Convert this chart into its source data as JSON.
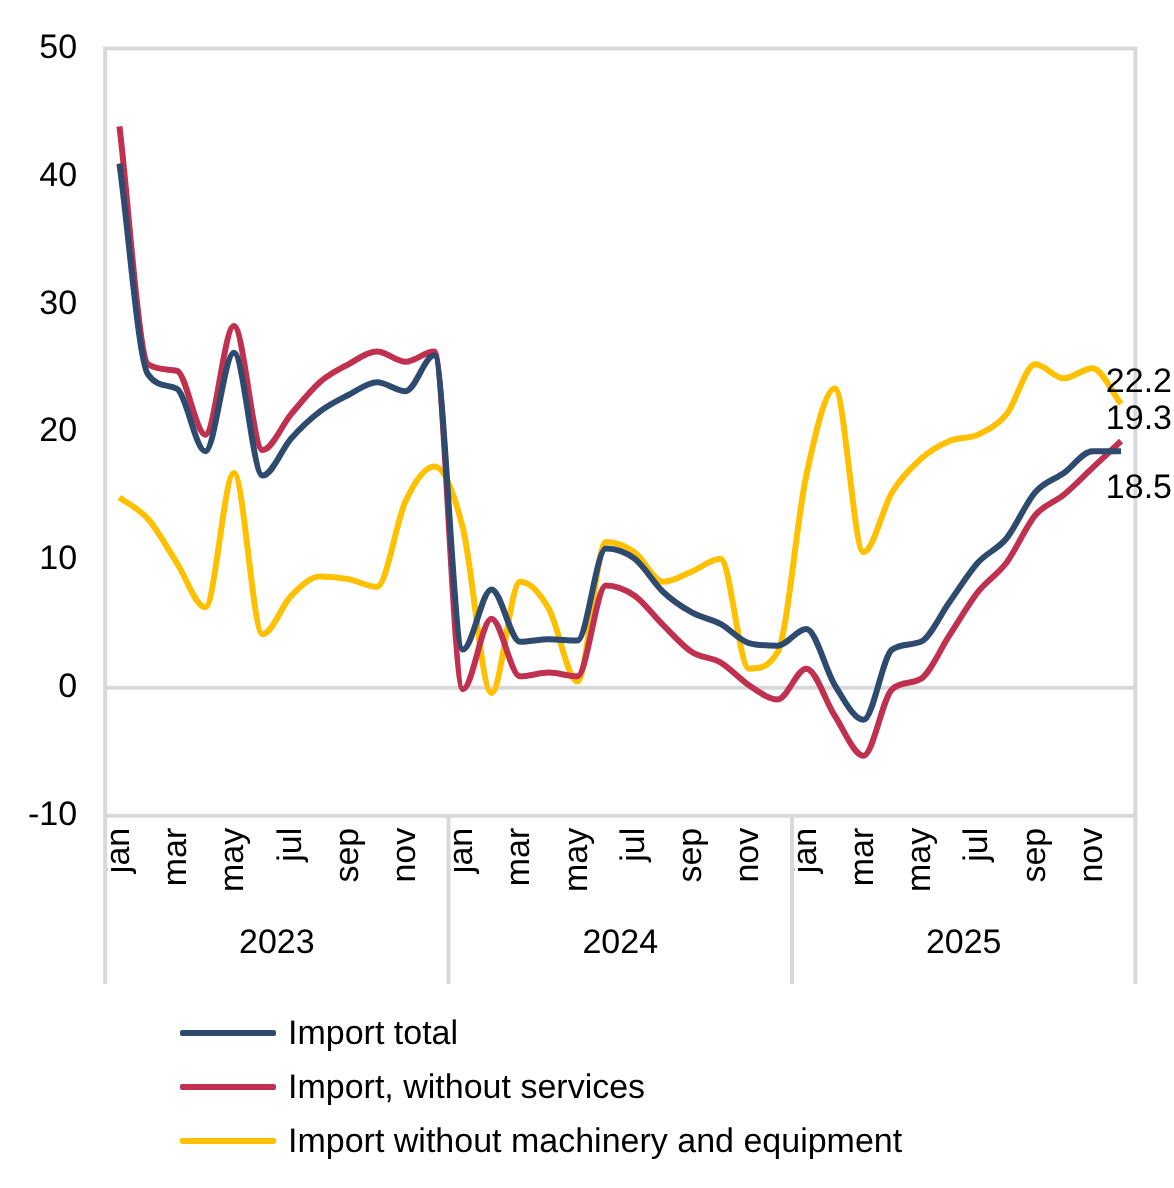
{
  "chart_data": {
    "type": "line",
    "categories": [
      "jan",
      null,
      "mar",
      null,
      "may",
      null,
      "jul",
      null,
      "sep",
      null,
      "nov",
      null,
      "jan",
      null,
      "mar",
      null,
      "may",
      null,
      "jul",
      null,
      "sep",
      null,
      "nov",
      null,
      "jan",
      null,
      "mar",
      null,
      "may",
      null,
      "jul",
      null,
      "sep",
      null,
      "nov",
      null
    ],
    "series": [
      {
        "name": "Import total",
        "color": "#2e4a6e",
        "values": [
          41.0,
          24.5,
          23.4,
          18.5,
          26.2,
          16.6,
          19.5,
          21.6,
          22.9,
          23.9,
          23.2,
          26.0,
          3.0,
          7.7,
          3.6,
          3.8,
          3.7,
          10.9,
          10.1,
          7.5,
          5.9,
          5.0,
          3.5,
          3.3,
          4.6,
          0.2,
          -2.5,
          3.0,
          3.6,
          6.7,
          9.8,
          11.7,
          15.3,
          16.8,
          18.5,
          18.5
        ],
        "value_labels": [
          null,
          null,
          null,
          null,
          null,
          null,
          null,
          null,
          null,
          null,
          null,
          null,
          null,
          null,
          null,
          null,
          null,
          null,
          null,
          null,
          null,
          null,
          null,
          null,
          null,
          null,
          null,
          null,
          null,
          null,
          null,
          null,
          null,
          null,
          null,
          "18.5"
        ]
      },
      {
        "name": "Import, without services",
        "color": "#c0304f",
        "values": [
          43.9,
          25.3,
          24.8,
          19.8,
          28.3,
          18.6,
          21.4,
          23.9,
          25.3,
          26.3,
          25.5,
          26.3,
          -0.1,
          5.4,
          0.9,
          1.2,
          0.9,
          8.0,
          7.2,
          4.9,
          2.8,
          2.0,
          0.2,
          -0.9,
          1.5,
          -2.2,
          -5.3,
          -0.1,
          0.7,
          4.1,
          7.5,
          9.8,
          13.5,
          15.1,
          17.2,
          19.3
        ],
        "value_labels": [
          null,
          null,
          null,
          null,
          null,
          null,
          null,
          null,
          null,
          null,
          null,
          null,
          null,
          null,
          null,
          null,
          null,
          null,
          null,
          null,
          null,
          null,
          null,
          null,
          null,
          null,
          null,
          null,
          null,
          null,
          null,
          null,
          null,
          null,
          null,
          "19.3"
        ]
      },
      {
        "name": "Import without machinery and equipment",
        "color": "#ffc000",
        "values": [
          14.9,
          13.2,
          9.8,
          6.3,
          16.8,
          4.2,
          7.2,
          8.7,
          8.5,
          7.9,
          14.6,
          17.3,
          12.5,
          -0.4,
          8.3,
          6.2,
          0.5,
          11.4,
          10.6,
          8.3,
          9.1,
          10.1,
          1.5,
          2.8,
          16.6,
          23.4,
          10.6,
          15.3,
          17.9,
          19.3,
          19.8,
          21.4,
          25.3,
          24.2,
          25.0,
          22.2
        ],
        "value_labels": [
          null,
          null,
          null,
          null,
          null,
          null,
          null,
          null,
          null,
          null,
          null,
          null,
          null,
          null,
          null,
          null,
          null,
          null,
          null,
          null,
          null,
          null,
          null,
          null,
          null,
          null,
          null,
          null,
          null,
          null,
          null,
          null,
          null,
          null,
          null,
          "22.2"
        ]
      }
    ],
    "ylim": [
      -10,
      50
    ],
    "yticks": [
      -10,
      0,
      10,
      20,
      30,
      40,
      50
    ],
    "ref_lines": [
      {
        "axis": "y",
        "value": 0,
        "color": "#d9d9d9"
      }
    ],
    "annotations": [
      "2023",
      "2024",
      "2025"
    ],
    "legend": "bottom",
    "line_style": "solid",
    "marker": "none"
  }
}
